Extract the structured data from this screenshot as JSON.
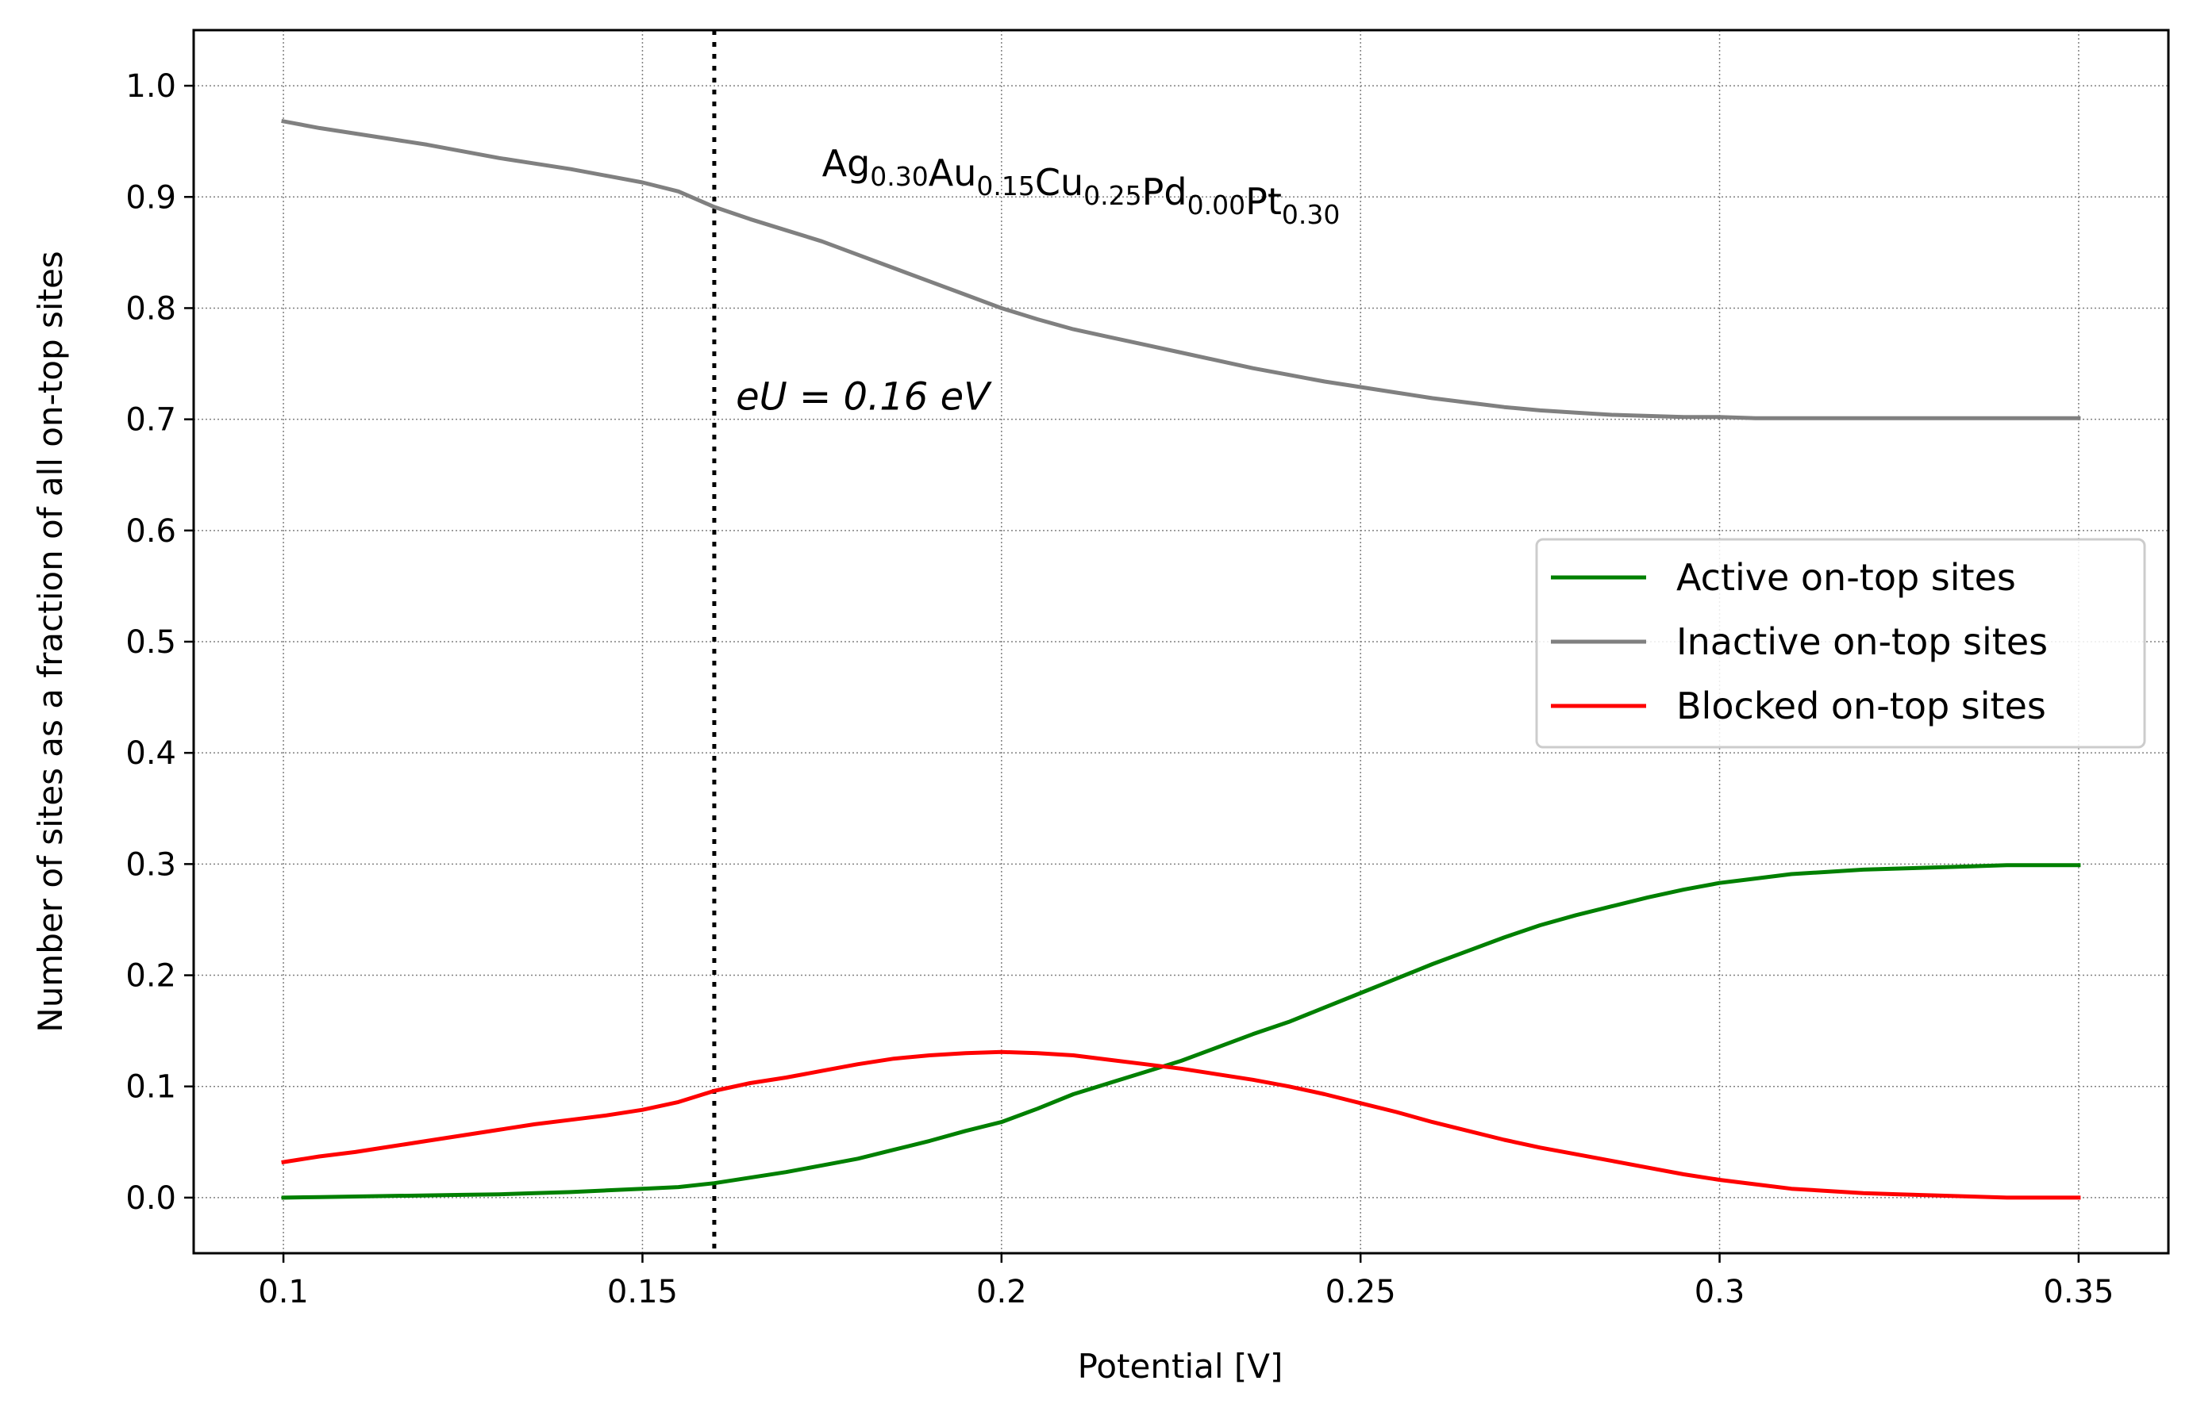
{
  "chart_data": {
    "type": "line",
    "title": "",
    "xlabel": "Potential [V]",
    "ylabel": "Number of sites as a fraction of all on-top sites",
    "xlim": [
      0.0875,
      0.3625
    ],
    "ylim": [
      -0.05,
      1.05
    ],
    "x_ticks": [
      0.1,
      0.15,
      0.2,
      0.25,
      0.3,
      0.35
    ],
    "x_tick_labels": [
      "0.1",
      "0.15",
      "0.2",
      "0.25",
      "0.3",
      "0.35"
    ],
    "y_ticks": [
      0.0,
      0.1,
      0.2,
      0.3,
      0.4,
      0.5,
      0.6,
      0.7,
      0.8,
      0.9,
      1.0
    ],
    "y_tick_labels": [
      "0.0",
      "0.1",
      "0.2",
      "0.3",
      "0.4",
      "0.5",
      "0.6",
      "0.7",
      "0.8",
      "0.9",
      "1.0"
    ],
    "grid": true,
    "legend_position": "center-right",
    "vline": {
      "x": 0.16,
      "style": "dotted",
      "color": "#000000"
    },
    "annotations": {
      "composition": [
        {
          "text": "Ag",
          "sub": "0.30"
        },
        {
          "text": "Au",
          "sub": "0.15"
        },
        {
          "text": "Cu",
          "sub": "0.25"
        },
        {
          "text": "Pd",
          "sub": "0.00"
        },
        {
          "text": "Pt",
          "sub": "0.30"
        }
      ],
      "composition_pos": [
        0.175,
        0.93
      ],
      "eu": {
        "text": "eU = 0.16 eV",
        "x": 0.163,
        "y": 0.71
      }
    },
    "x": [
      0.1,
      0.105,
      0.11,
      0.115,
      0.12,
      0.125,
      0.13,
      0.135,
      0.14,
      0.145,
      0.15,
      0.155,
      0.16,
      0.165,
      0.17,
      0.175,
      0.18,
      0.185,
      0.19,
      0.195,
      0.2,
      0.205,
      0.21,
      0.215,
      0.22,
      0.225,
      0.23,
      0.235,
      0.24,
      0.245,
      0.25,
      0.255,
      0.26,
      0.265,
      0.27,
      0.275,
      0.28,
      0.285,
      0.29,
      0.295,
      0.3,
      0.305,
      0.31,
      0.315,
      0.32,
      0.325,
      0.33,
      0.335,
      0.34,
      0.345,
      0.35
    ],
    "series": [
      {
        "name": "Active on-top sites",
        "color": "#008000",
        "values": [
          0.0,
          0.0005,
          0.001,
          0.0015,
          0.002,
          0.0025,
          0.003,
          0.004,
          0.005,
          0.0065,
          0.008,
          0.0095,
          0.013,
          0.018,
          0.023,
          0.029,
          0.035,
          0.043,
          0.051,
          0.06,
          0.068,
          0.08,
          0.093,
          0.103,
          0.113,
          0.123,
          0.135,
          0.147,
          0.158,
          0.171,
          0.184,
          0.197,
          0.21,
          0.222,
          0.234,
          0.245,
          0.254,
          0.262,
          0.27,
          0.277,
          0.283,
          0.287,
          0.291,
          0.293,
          0.295,
          0.296,
          0.297,
          0.298,
          0.299,
          0.299,
          0.299
        ]
      },
      {
        "name": "Inactive on-top sites",
        "color": "#808080",
        "values": [
          0.968,
          0.962,
          0.957,
          0.952,
          0.947,
          0.941,
          0.935,
          0.93,
          0.925,
          0.919,
          0.913,
          0.905,
          0.891,
          0.88,
          0.87,
          0.86,
          0.848,
          0.836,
          0.824,
          0.812,
          0.8,
          0.79,
          0.781,
          0.774,
          0.767,
          0.76,
          0.753,
          0.746,
          0.74,
          0.734,
          0.729,
          0.724,
          0.719,
          0.715,
          0.711,
          0.708,
          0.706,
          0.704,
          0.703,
          0.702,
          0.702,
          0.701,
          0.701,
          0.701,
          0.701,
          0.701,
          0.701,
          0.701,
          0.701,
          0.701,
          0.701
        ]
      },
      {
        "name": "Blocked on-top sites",
        "color": "#ff0000",
        "values": [
          0.032,
          0.037,
          0.041,
          0.046,
          0.051,
          0.056,
          0.061,
          0.066,
          0.07,
          0.074,
          0.079,
          0.086,
          0.096,
          0.103,
          0.108,
          0.114,
          0.12,
          0.125,
          0.128,
          0.13,
          0.131,
          0.13,
          0.128,
          0.124,
          0.12,
          0.116,
          0.111,
          0.106,
          0.1,
          0.093,
          0.085,
          0.077,
          0.068,
          0.06,
          0.052,
          0.045,
          0.039,
          0.033,
          0.027,
          0.021,
          0.016,
          0.012,
          0.008,
          0.006,
          0.004,
          0.003,
          0.002,
          0.001,
          0.0,
          0.0,
          0.0
        ]
      }
    ]
  }
}
